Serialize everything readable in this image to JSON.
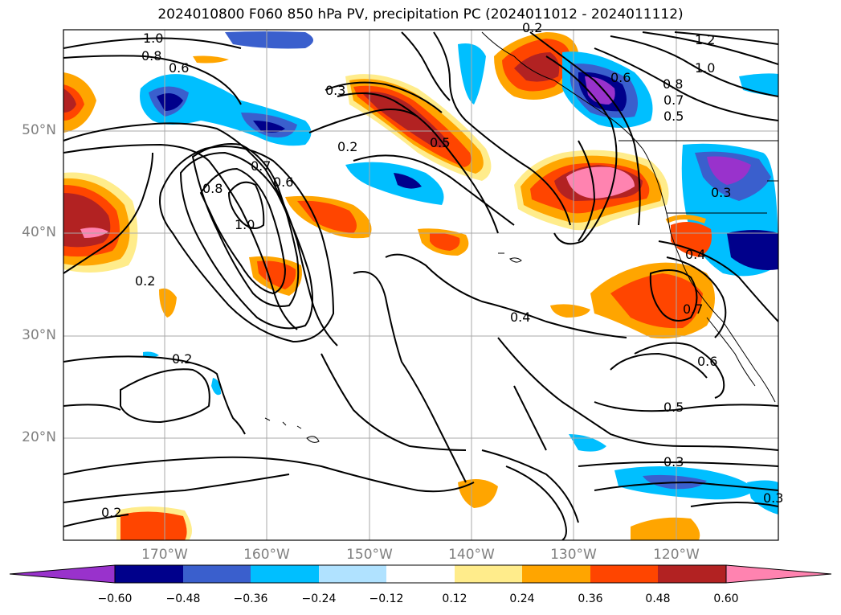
{
  "title": "2024010800 F060 850 hPa PV, precipitation PC (2024011012 - 2024011112)",
  "lat_labels": [
    "50°N",
    "40°N",
    "30°N",
    "20°N"
  ],
  "lon_labels": [
    "170°W",
    "160°W",
    "150°W",
    "140°W",
    "130°W",
    "120°W"
  ],
  "colorbar": {
    "ticks": [
      "−0.60",
      "−0.48",
      "−0.36",
      "−0.24",
      "−0.12",
      "0.12",
      "0.24",
      "0.36",
      "0.48",
      "0.60"
    ],
    "colors": [
      "#9932cc",
      "#00008b",
      "#3a5fcd",
      "#00bfff",
      "#b0e2ff",
      "#ffffff",
      "#ffec8b",
      "#ffa500",
      "#ff4500",
      "#b22222",
      "#ff83b0"
    ]
  },
  "contour_labels": [
    "1.0",
    "0.8",
    "0.6",
    "0.3",
    "0.2",
    "0.7",
    "0.6",
    "0.8",
    "1.0",
    "0.2",
    "0.5",
    "1.2",
    "1.0",
    "0.6",
    "0.8",
    "0.7",
    "0.5",
    "0.3",
    "0.4",
    "0.4",
    "0.7",
    "0.6",
    "0.5",
    "0.3",
    "0.2",
    "0.2",
    "0.2",
    "0.3"
  ]
}
